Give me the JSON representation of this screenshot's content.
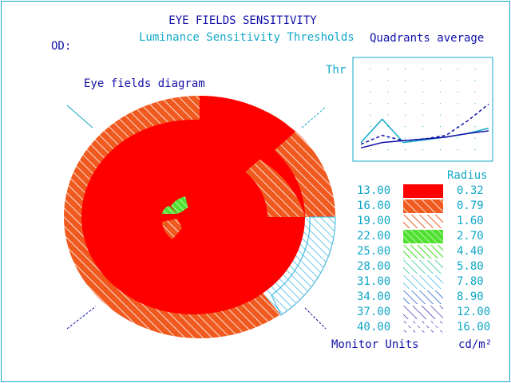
{
  "header": {
    "title": "EYE FIELDS SENSITIVITY",
    "subtitle": "Luminance Sensitivity Thresholds",
    "quadrants_title": "Quadrants average"
  },
  "eye": {
    "label": "OD:"
  },
  "diagram": {
    "title": "Eye fields diagram",
    "colors": {
      "red": "#ff0000",
      "orange": "#f05a1e",
      "green": "#50e030",
      "lightblue": "#30b4e0",
      "white": "#ffffff"
    }
  },
  "legend": {
    "radius_header": "Radius",
    "units_label": "Monitor Units",
    "units_right": "cd/m²",
    "rows": [
      {
        "threshold": "13.00",
        "radius": "0.32",
        "color": "#ff0000",
        "pattern": "solid"
      },
      {
        "threshold": "16.00",
        "radius": "0.79",
        "color": "#f05a1e",
        "pattern": "dense"
      },
      {
        "threshold": "19.00",
        "radius": "1.60",
        "color": "#f05a1e",
        "pattern": "sparse"
      },
      {
        "threshold": "22.00",
        "radius": "2.70",
        "color": "#50e030",
        "pattern": "dense"
      },
      {
        "threshold": "25.00",
        "radius": "4.40",
        "color": "#50e030",
        "pattern": "sparse"
      },
      {
        "threshold": "28.00",
        "radius": "5.80",
        "color": "#30c8a0",
        "pattern": "sparse"
      },
      {
        "threshold": "31.00",
        "radius": "7.80",
        "color": "#30b4e0",
        "pattern": "sparse"
      },
      {
        "threshold": "34.00",
        "radius": "8.90",
        "color": "#1050c8",
        "pattern": "sparse"
      },
      {
        "threshold": "37.00",
        "radius": "12.00",
        "color": "#1010a8",
        "pattern": "sparse"
      },
      {
        "threshold": "40.00",
        "radius": "16.00",
        "color": "#1010a8",
        "pattern": "dashed"
      }
    ]
  },
  "chart": {
    "y_label": "Thr",
    "series": [
      {
        "color": "#10a8c8",
        "dash": "",
        "values": [
          0.12,
          0.38,
          0.12,
          0.15,
          0.18,
          0.22,
          0.28
        ]
      },
      {
        "color": "#1010a8",
        "dash": "4,3",
        "values": [
          0.1,
          0.2,
          0.14,
          0.16,
          0.2,
          0.36,
          0.55
        ]
      },
      {
        "color": "#1010a8",
        "dash": "",
        "values": [
          0.06,
          0.12,
          0.14,
          0.16,
          0.18,
          0.22,
          0.25
        ]
      }
    ]
  }
}
